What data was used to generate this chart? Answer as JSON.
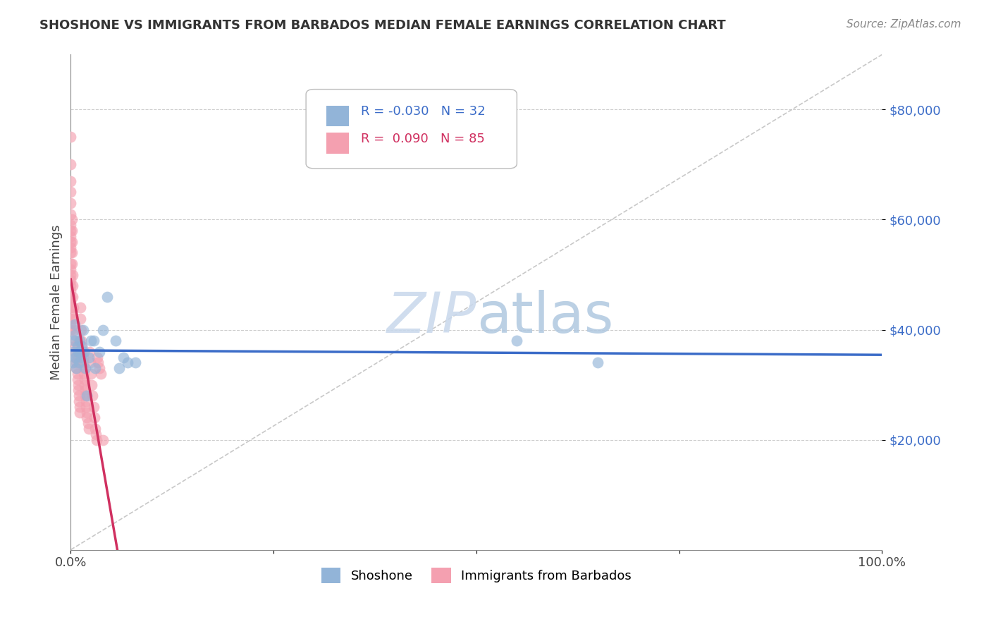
{
  "title": "SHOSHONE VS IMMIGRANTS FROM BARBADOS MEDIAN FEMALE EARNINGS CORRELATION CHART",
  "source_text": "Source: ZipAtlas.com",
  "ylabel": "Median Female Earnings",
  "xlim": [
    0,
    1.0
  ],
  "ylim": [
    0,
    90000
  ],
  "ytick_values": [
    20000,
    40000,
    60000,
    80000
  ],
  "legend_label1": "Shoshone",
  "legend_label2": "Immigrants from Barbados",
  "R1": -0.03,
  "N1": 32,
  "R2": 0.09,
  "N2": 85,
  "color_blue": "#92B4D8",
  "color_pink": "#F4A0B0",
  "color_line_blue": "#3B6CC8",
  "color_line_pink": "#D03060",
  "watermark_color": "#C8D8EC",
  "shoshone_x": [
    0.002,
    0.003,
    0.004,
    0.005,
    0.005,
    0.006,
    0.007,
    0.008,
    0.009,
    0.01,
    0.011,
    0.012,
    0.013,
    0.014,
    0.015,
    0.016,
    0.018,
    0.02,
    0.022,
    0.025,
    0.028,
    0.03,
    0.035,
    0.04,
    0.045,
    0.055,
    0.06,
    0.065,
    0.07,
    0.08,
    0.55,
    0.65
  ],
  "shoshone_y": [
    34000,
    36000,
    38000,
    39000,
    41000,
    35000,
    33000,
    37000,
    36000,
    34000,
    38000,
    36000,
    35000,
    37000,
    40000,
    36000,
    33000,
    28000,
    35000,
    38000,
    38000,
    33000,
    36000,
    40000,
    46000,
    38000,
    33000,
    35000,
    34000,
    34000,
    38000,
    34000
  ],
  "barbados_x": [
    0.0,
    0.0,
    0.0,
    0.0,
    0.0,
    0.0,
    0.0,
    0.0,
    0.0,
    0.0,
    0.0,
    0.0,
    0.0,
    0.0,
    0.0,
    0.0,
    0.0,
    0.0,
    0.0,
    0.0,
    0.0,
    0.0,
    0.0,
    0.0,
    0.0,
    0.001,
    0.001,
    0.001,
    0.001,
    0.001,
    0.002,
    0.002,
    0.002,
    0.003,
    0.003,
    0.004,
    0.005,
    0.005,
    0.006,
    0.006,
    0.007,
    0.007,
    0.008,
    0.008,
    0.009,
    0.009,
    0.01,
    0.01,
    0.011,
    0.011,
    0.012,
    0.012,
    0.013,
    0.013,
    0.014,
    0.014,
    0.015,
    0.015,
    0.016,
    0.016,
    0.017,
    0.017,
    0.018,
    0.018,
    0.019,
    0.019,
    0.02,
    0.02,
    0.021,
    0.022,
    0.023,
    0.024,
    0.025,
    0.026,
    0.027,
    0.028,
    0.029,
    0.03,
    0.031,
    0.032,
    0.033,
    0.034,
    0.035,
    0.037,
    0.04
  ],
  "barbados_y": [
    75000,
    70000,
    67000,
    65000,
    63000,
    61000,
    59000,
    58000,
    57000,
    56000,
    55000,
    54000,
    52000,
    51000,
    50000,
    49000,
    48000,
    47000,
    46000,
    45000,
    44000,
    43000,
    42000,
    41000,
    40000,
    60000,
    58000,
    56000,
    54000,
    52000,
    50000,
    48000,
    46000,
    44000,
    42000,
    40000,
    38000,
    37000,
    36000,
    35000,
    34000,
    33000,
    32000,
    31000,
    30000,
    29000,
    28000,
    27000,
    26000,
    25000,
    44000,
    42000,
    40000,
    38000,
    37000,
    36000,
    35000,
    34000,
    33000,
    32000,
    31000,
    30000,
    29000,
    28000,
    27000,
    26000,
    25000,
    24000,
    23000,
    22000,
    36000,
    34000,
    32000,
    30000,
    28000,
    26000,
    24000,
    22000,
    21000,
    20000,
    35000,
    34000,
    33000,
    32000,
    20000
  ]
}
